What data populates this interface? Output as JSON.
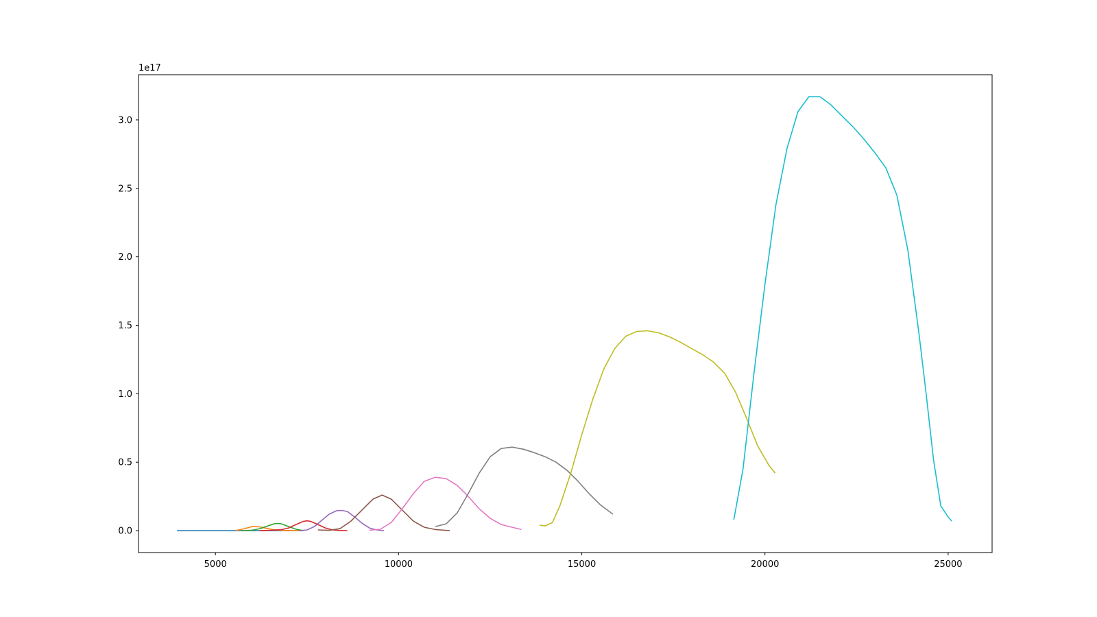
{
  "chart_data": {
    "type": "line",
    "title": "",
    "xlabel": "",
    "ylabel": "",
    "y_offset_label": "1e17",
    "y_scale": 1e+17,
    "xlim": [
      2900,
      26200
    ],
    "ylim": [
      -0.16,
      3.33
    ],
    "grid": false,
    "legend": "none",
    "x_ticks": [
      5000,
      10000,
      15000,
      20000,
      25000
    ],
    "x_tick_labels": [
      "5000",
      "10000",
      "15000",
      "20000",
      "25000"
    ],
    "y_ticks": [
      0.0,
      0.5,
      1.0,
      1.5,
      2.0,
      2.5,
      3.0
    ],
    "y_tick_labels": [
      "0.0",
      "0.5",
      "1.0",
      "1.5",
      "2.0",
      "2.5",
      "3.0"
    ],
    "series": [
      {
        "color": "#1f77b4",
        "x": [
          3950,
          4500,
          5000,
          5500,
          6000,
          6500,
          7000,
          7400
        ],
        "y": [
          0.0,
          0.0,
          0.0,
          0.0,
          0.0,
          0.0,
          0.0,
          0.0
        ]
      },
      {
        "color": "#ff7f0e",
        "x": [
          5550,
          5800,
          6000,
          6200,
          6400,
          6600,
          6800,
          7000,
          7200,
          7350
        ],
        "y": [
          0.0,
          0.015,
          0.03,
          0.028,
          0.017,
          0.006,
          0.002,
          0.001,
          0.0,
          0.0
        ]
      },
      {
        "color": "#2ca02c",
        "x": [
          5700,
          6000,
          6200,
          6400,
          6600,
          6700,
          6800,
          7000,
          7200,
          7400
        ],
        "y": [
          0.0,
          0.003,
          0.013,
          0.032,
          0.05,
          0.053,
          0.05,
          0.03,
          0.01,
          0.0
        ]
      },
      {
        "color": "#d62728",
        "x": [
          6200,
          6500,
          6800,
          7000,
          7200,
          7400,
          7500,
          7600,
          7800,
          8000,
          8200,
          8400,
          8600
        ],
        "y": [
          0.0,
          0.002,
          0.007,
          0.02,
          0.045,
          0.068,
          0.072,
          0.068,
          0.045,
          0.02,
          0.005,
          0.001,
          0.0
        ]
      },
      {
        "color": "#9467bd",
        "x": [
          7300,
          7500,
          7700,
          7900,
          8100,
          8300,
          8450,
          8600,
          8800,
          9000,
          9200,
          9400,
          9600
        ],
        "y": [
          0.0,
          0.005,
          0.03,
          0.075,
          0.12,
          0.145,
          0.148,
          0.14,
          0.1,
          0.055,
          0.02,
          0.005,
          0.0
        ]
      },
      {
        "color": "#8c564b",
        "x": [
          7800,
          8100,
          8400,
          8700,
          9000,
          9300,
          9550,
          9800,
          10100,
          10400,
          10700,
          11000,
          11400
        ],
        "y": [
          0.005,
          0.002,
          0.015,
          0.07,
          0.15,
          0.23,
          0.26,
          0.23,
          0.15,
          0.07,
          0.025,
          0.008,
          0.0
        ]
      },
      {
        "color": "#e377c2",
        "x": [
          9200,
          9500,
          9800,
          10100,
          10400,
          10700,
          11000,
          11300,
          11600,
          11900,
          12200,
          12500,
          12800,
          13100,
          13350
        ],
        "y": [
          0.003,
          0.01,
          0.06,
          0.16,
          0.27,
          0.36,
          0.39,
          0.38,
          0.33,
          0.25,
          0.16,
          0.09,
          0.045,
          0.025,
          0.008
        ]
      },
      {
        "color": "#7f7f7f",
        "x": [
          11000,
          11300,
          11600,
          11900,
          12200,
          12500,
          12800,
          13100,
          13400,
          13700,
          14000,
          14300,
          14600,
          14900,
          15200,
          15500,
          15850
        ],
        "y": [
          0.03,
          0.05,
          0.13,
          0.27,
          0.42,
          0.54,
          0.6,
          0.61,
          0.595,
          0.57,
          0.54,
          0.5,
          0.44,
          0.36,
          0.27,
          0.19,
          0.12
        ]
      },
      {
        "color": "#bcbd22",
        "x": [
          13850,
          14000,
          14200,
          14400,
          14700,
          15000,
          15300,
          15600,
          15900,
          16200,
          16500,
          16800,
          17100,
          17400,
          17700,
          18000,
          18300,
          18600,
          18900,
          19200,
          19500,
          19800,
          20100,
          20280
        ],
        "y": [
          0.04,
          0.035,
          0.06,
          0.18,
          0.42,
          0.7,
          0.96,
          1.18,
          1.33,
          1.42,
          1.455,
          1.46,
          1.445,
          1.415,
          1.375,
          1.33,
          1.285,
          1.23,
          1.15,
          1.01,
          0.82,
          0.62,
          0.48,
          0.42
        ]
      },
      {
        "color": "#17becf",
        "x": [
          19150,
          19400,
          19700,
          20000,
          20300,
          20600,
          20900,
          21200,
          21500,
          21800,
          22100,
          22400,
          22700,
          23000,
          23300,
          23600,
          23900,
          24200,
          24400,
          24600,
          24800,
          25000,
          25100
        ],
        "y": [
          0.08,
          0.45,
          1.15,
          1.8,
          2.38,
          2.79,
          3.06,
          3.17,
          3.17,
          3.11,
          3.03,
          2.95,
          2.86,
          2.76,
          2.65,
          2.45,
          2.05,
          1.45,
          1.0,
          0.52,
          0.18,
          0.1,
          0.07
        ]
      }
    ]
  }
}
